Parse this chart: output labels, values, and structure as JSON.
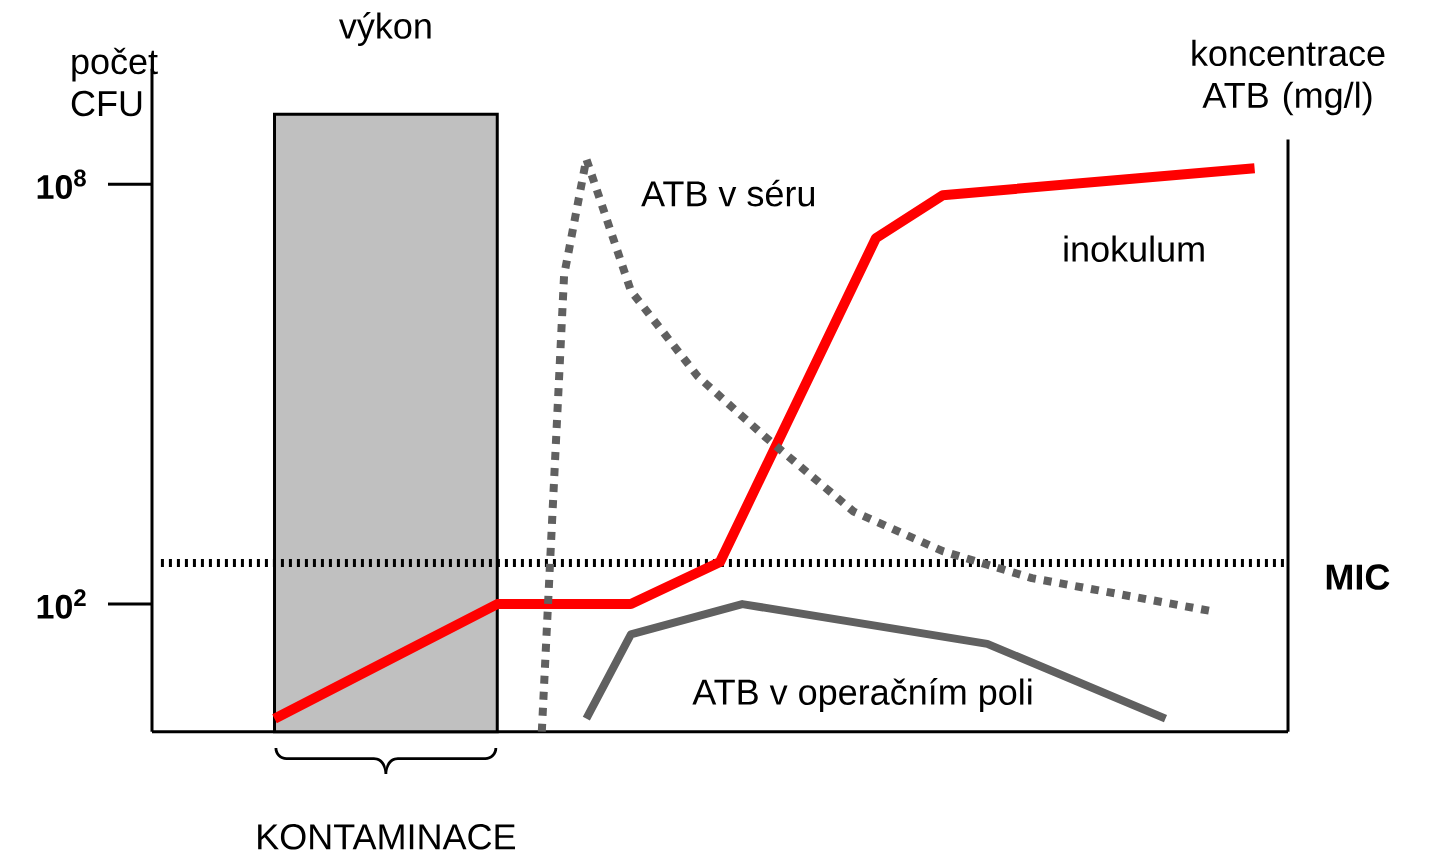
{
  "chart_data": {
    "type": "line",
    "ylabel": "počet CFU",
    "y2label": "koncentrace ATB (mg/l)",
    "log": "y",
    "ylim": [
      1.5,
      4500000000.0
    ],
    "tick_labels": "y",
    "yticks": [
      {
        "value": 100,
        "label": "10$^{2}$"
      },
      {
        "value": 100000000,
        "label": "10$^{8}$"
      }
    ],
    "marker": "none",
    "categories": [
      null,
      null,
      null,
      null,
      null,
      null,
      null,
      null,
      null,
      null,
      null,
      null,
      null,
      null,
      null,
      null,
      null,
      null,
      null,
      null,
      null,
      null,
      null,
      null,
      null,
      null,
      null,
      null,
      null,
      null,
      null,
      null,
      null,
      null,
      null,
      null,
      null,
      null,
      null,
      null,
      null,
      null,
      null,
      null,
      null,
      null,
      null,
      null,
      null,
      null,
      null
    ],
    "series": [
      {
        "name": "inokulum",
        "color": "#ff0000",
        "line_style": "solid",
        "values": [
          null,
          null,
          null,
          null,
          null,
          2.3,
          null,
          null,
          null,
          null,
          null,
          null,
          null,
          null,
          null,
          100,
          null,
          null,
          null,
          null,
          null,
          100,
          null,
          null,
          null,
          400,
          null,
          null,
          null,
          null,
          null,
          null,
          17000000,
          null,
          null,
          70000000,
          null,
          null,
          null,
          null,
          null,
          null,
          null,
          null,
          null,
          null,
          null,
          null,
          null,
          170000000,
          null
        ]
      },
      {
        "name": "ATB v séru",
        "color": "#606060",
        "line_style": "dotted",
        "values": [
          null,
          null,
          null,
          null,
          null,
          null,
          null,
          null,
          null,
          null,
          null,
          null,
          null,
          null,
          null,
          null,
          null,
          1.5,
          5000000,
          230000000,
          null,
          3000000,
          null,
          null,
          180000,
          null,
          null,
          25000,
          null,
          null,
          null,
          2100,
          null,
          null,
          null,
          570,
          null,
          null,
          null,
          235,
          null,
          null,
          null,
          null,
          null,
          null,
          null,
          80,
          null,
          null,
          null
        ]
      },
      {
        "name": "ATB v operačním poli",
        "color": "#606060",
        "line_style": "solid",
        "values": [
          null,
          null,
          null,
          null,
          null,
          null,
          null,
          null,
          null,
          null,
          null,
          null,
          null,
          null,
          null,
          null,
          null,
          null,
          null,
          2.3,
          null,
          37,
          null,
          null,
          null,
          null,
          100,
          null,
          null,
          null,
          null,
          null,
          null,
          null,
          null,
          null,
          null,
          27,
          null,
          null,
          null,
          null,
          null,
          null,
          null,
          2.3,
          null,
          null,
          null,
          null,
          null
        ]
      }
    ],
    "ref_lines": [
      {
        "axis": "y",
        "value": 385,
        "label": "MIC",
        "color": "#000000",
        "line_style": "dotted"
      }
    ],
    "annotations": [
      "výkon",
      "KONTAMINACE"
    ]
  }
}
